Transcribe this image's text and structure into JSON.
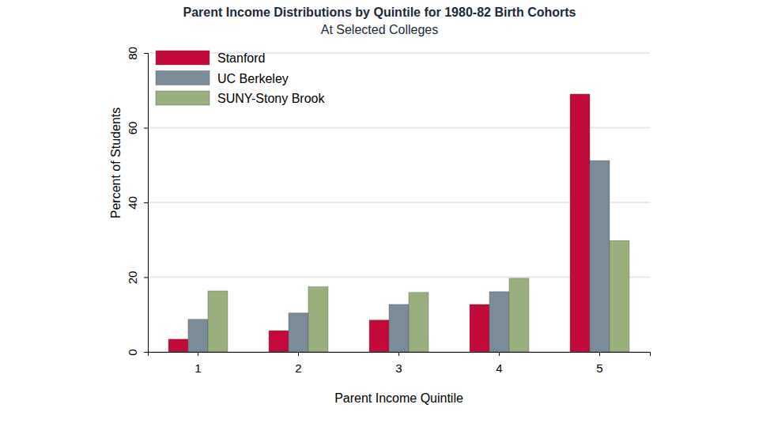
{
  "chart_data": {
    "type": "bar",
    "title": "Parent Income Distributions by Quintile for 1980-82 Birth Cohorts",
    "subtitle": "At Selected Colleges",
    "x_label": "Parent Income Quintile",
    "y_label": "Percent of Students",
    "categories": [
      "1",
      "2",
      "3",
      "4",
      "5"
    ],
    "series": [
      {
        "name": "Stanford",
        "color": "#c20a3a",
        "values": [
          3.4,
          5.7,
          8.5,
          12.7,
          69
        ]
      },
      {
        "name": "UC Berkeley",
        "color": "#7a8b99",
        "values": [
          8.7,
          10.4,
          12.7,
          16.1,
          51.2
        ]
      },
      {
        "name": "SUNY-Stony Brook",
        "color": "#99b07c",
        "values": [
          16.3,
          17.4,
          15.9,
          19.7,
          29.8
        ]
      }
    ],
    "ylim": [
      0,
      80
    ],
    "yticks": [
      0,
      20,
      40,
      60,
      80
    ],
    "grid": true,
    "legend": "top-left"
  }
}
